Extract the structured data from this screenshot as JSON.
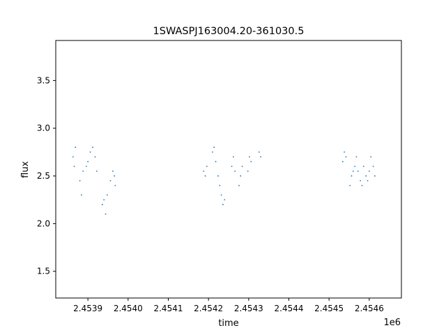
{
  "chart_data": {
    "type": "scatter",
    "title": "1SWASPJ163004.20-361030.5",
    "xlabel": "time",
    "ylabel": "flux",
    "x_offset_label": "1e6",
    "xlim": [
      2.45382,
      2.45468
    ],
    "ylim": [
      1.22,
      3.92
    ],
    "x_ticks": [
      2.4539,
      2.454,
      2.4541,
      2.4542,
      2.4543,
      2.4544,
      2.4545,
      2.4546
    ],
    "x_tick_labels": [
      "2.4539",
      "2.4540",
      "2.4541",
      "2.4542",
      "2.4543",
      "2.4544",
      "2.4545",
      "2.4546"
    ],
    "y_ticks": [
      1.5,
      2.0,
      2.5,
      3.0,
      3.5
    ],
    "y_tick_labels": [
      "1.5",
      "2.0",
      "2.5",
      "3.0",
      "3.5"
    ],
    "grid": false,
    "marker_color": "#1f77b4",
    "series": [
      {
        "x": [
          2.453863,
          2.453866,
          2.453869,
          2.45388,
          2.453884,
          2.453888,
          2.453896,
          2.4539,
          2.453906,
          2.453912,
          2.453918,
          2.453922,
          2.453936,
          2.45394,
          2.453944,
          2.453948,
          2.453956,
          2.453962,
          2.453966,
          2.453968
        ],
        "y": [
          2.7,
          2.6,
          2.8,
          2.45,
          2.3,
          2.55,
          2.6,
          2.65,
          2.75,
          2.8,
          2.7,
          2.55,
          2.2,
          2.25,
          2.1,
          2.3,
          2.45,
          2.55,
          2.5,
          2.4
        ]
      },
      {
        "x": [
          2.454188,
          2.454192,
          2.454196,
          2.45421,
          2.454214,
          2.454218,
          2.454224,
          2.454228,
          2.454232,
          2.454236,
          2.45424,
          2.454258,
          2.454262,
          2.454266,
          2.454276,
          2.45428,
          2.454284,
          2.454298,
          2.454302,
          2.454306,
          2.454326,
          2.45433
        ],
        "y": [
          2.55,
          2.5,
          2.6,
          2.75,
          2.8,
          2.65,
          2.5,
          2.4,
          2.3,
          2.2,
          2.25,
          2.6,
          2.7,
          2.55,
          2.4,
          2.5,
          2.6,
          2.55,
          2.7,
          2.65,
          2.75,
          2.7
        ]
      },
      {
        "x": [
          2.454534,
          2.454538,
          2.454542,
          2.454552,
          2.454556,
          2.45456,
          2.454564,
          2.454568,
          2.454572,
          2.454578,
          2.454582,
          2.454586,
          2.454592,
          2.454596,
          2.4546,
          2.454604,
          2.45461,
          2.454614
        ],
        "y": [
          2.65,
          2.75,
          2.7,
          2.4,
          2.5,
          2.55,
          2.6,
          2.7,
          2.55,
          2.45,
          2.4,
          2.6,
          2.5,
          2.45,
          2.55,
          2.7,
          2.6,
          2.5
        ]
      }
    ]
  }
}
